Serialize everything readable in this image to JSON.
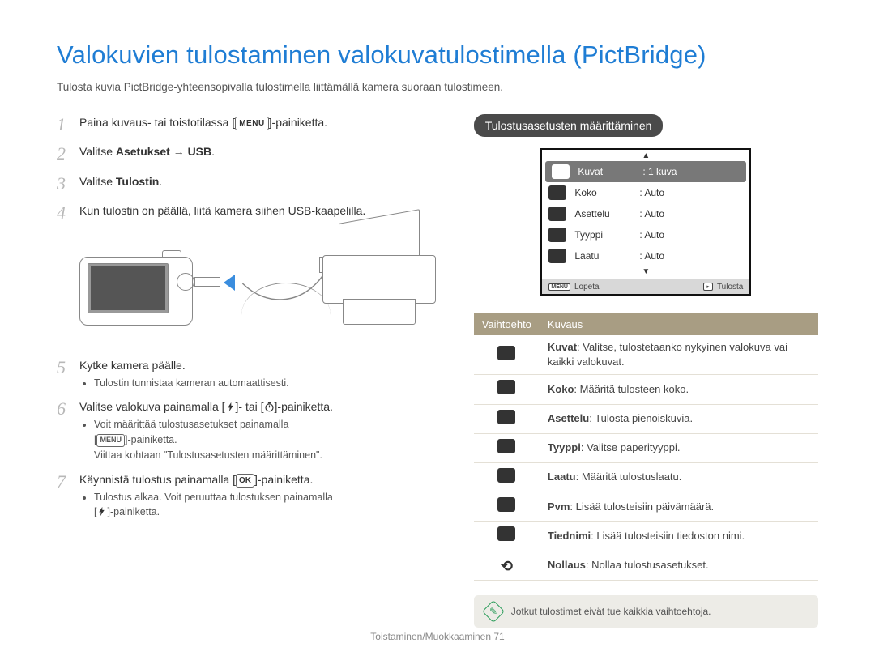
{
  "title": "Valokuvien tulostaminen valokuvatulostimella (PictBridge)",
  "intro": "Tulosta kuvia PictBridge-yhteensopivalla tulostimella liittämällä kamera suoraan tulostimeen.",
  "steps": {
    "s1a": "Paina kuvaus- tai toistotilassa [",
    "s1b": "]-painiketta.",
    "menu_key": "MENU",
    "s2a": "Valitse ",
    "s2b": "Asetukset → USB",
    "s2c": ".",
    "s3a": "Valitse ",
    "s3b": "Tulostin",
    "s3c": ".",
    "s4": "Kun tulostin on päällä, liitä kamera siihen USB-kaapelilla.",
    "s5": "Kytke kamera päälle.",
    "s5sub": "Tulostin tunnistaa kameran automaattisesti.",
    "s6a": "Valitse valokuva painamalla [",
    "s6b": "]- tai [",
    "s6c": "]-painiketta.",
    "s6sub1": "Voit määrittää tulostusasetukset painamalla",
    "s6sub2a": "[",
    "s6sub2b": "]-painiketta.",
    "s6sub3": "Viittaa kohtaan \"Tulostusasetusten määrittäminen\".",
    "s7a": "Käynnistä tulostus painamalla [",
    "ok_key": "OK",
    "s7b": "]-painiketta.",
    "s7sub1": "Tulostus alkaa. Voit peruuttaa tulostuksen painamalla",
    "s7sub2a": "[",
    "s7sub2b": "]-painiketta."
  },
  "right": {
    "heading": "Tulostusasetusten määrittäminen"
  },
  "lcd": {
    "rows": [
      {
        "label": "Kuvat",
        "value": ": 1 kuva",
        "selected": true
      },
      {
        "label": "Koko",
        "value": ": Auto"
      },
      {
        "label": "Asettelu",
        "value": ": Auto"
      },
      {
        "label": "Tyyppi",
        "value": ": Auto"
      },
      {
        "label": "Laatu",
        "value": ": Auto"
      }
    ],
    "footer_left_key": "MENU",
    "footer_left": "Lopeta",
    "footer_right": "Tulosta"
  },
  "table": {
    "head_option": "Vaihtoehto",
    "head_desc": "Kuvaus",
    "rows": [
      {
        "term": "Kuvat",
        "desc": ": Valitse, tulostetaanko nykyinen valokuva vai kaikki valokuvat."
      },
      {
        "term": "Koko",
        "desc": ": Määritä tulosteen koko."
      },
      {
        "term": "Asettelu",
        "desc": ": Tulosta pienoiskuvia."
      },
      {
        "term": "Tyyppi",
        "desc": ": Valitse paperityyppi."
      },
      {
        "term": "Laatu",
        "desc": ": Määritä tulostuslaatu."
      },
      {
        "term": "Pvm",
        "desc": ": Lisää tulosteisiin päivämäärä."
      },
      {
        "term": "Tiednimi",
        "desc": ": Lisää tulosteisiin tiedoston nimi."
      },
      {
        "term": "Nollaus",
        "desc": ": Nollaa tulostusasetukset.",
        "reset": true
      }
    ]
  },
  "note": "Jotkut tulostimet eivät tue kaikkia vaihtoehtoja.",
  "footer": "Toistaminen/Muokkaaminen  71",
  "colors": {
    "title": "#1f7dd4",
    "table_header_bg": "#a89d83",
    "note_bg": "#edece7",
    "note_icon": "#2a9d5a",
    "lcd_selected": "#787878"
  }
}
